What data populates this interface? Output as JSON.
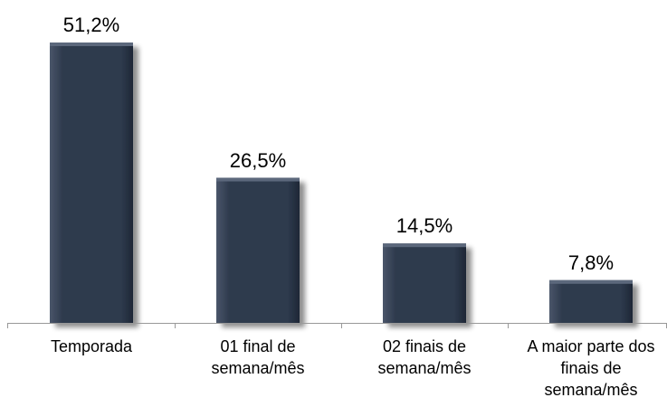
{
  "chart_data": {
    "type": "bar",
    "categories": [
      "Temporada",
      "01 final de semana/mês",
      "02 finais de semana/mês",
      "A maior parte dos finais de semana/mês"
    ],
    "values": [
      51.2,
      26.5,
      14.5,
      7.8
    ],
    "value_labels": [
      "51,2%",
      "26,5%",
      "14,5%",
      "7,8%"
    ],
    "color": "#2f3b4e"
  }
}
